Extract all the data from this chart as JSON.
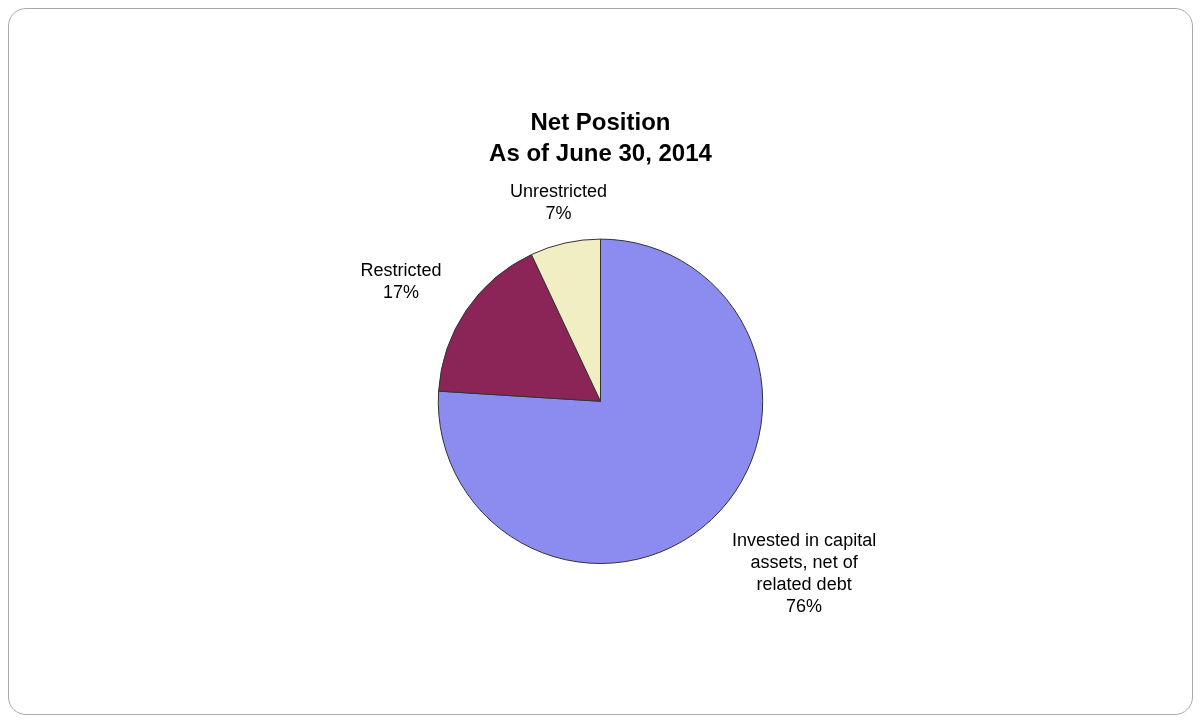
{
  "chart_data": {
    "type": "pie",
    "title": "Net Position",
    "subtitle": "As of June 30, 2014",
    "categories": [
      "Invested in capital assets, net of related debt",
      "Restricted",
      "Unrestricted"
    ],
    "values": [
      76,
      17,
      7
    ],
    "colors": [
      "#8c8cf0",
      "#8b2558",
      "#f2eec4"
    ],
    "value_labels": [
      "76%",
      "17%",
      "7%"
    ],
    "legend": false
  }
}
